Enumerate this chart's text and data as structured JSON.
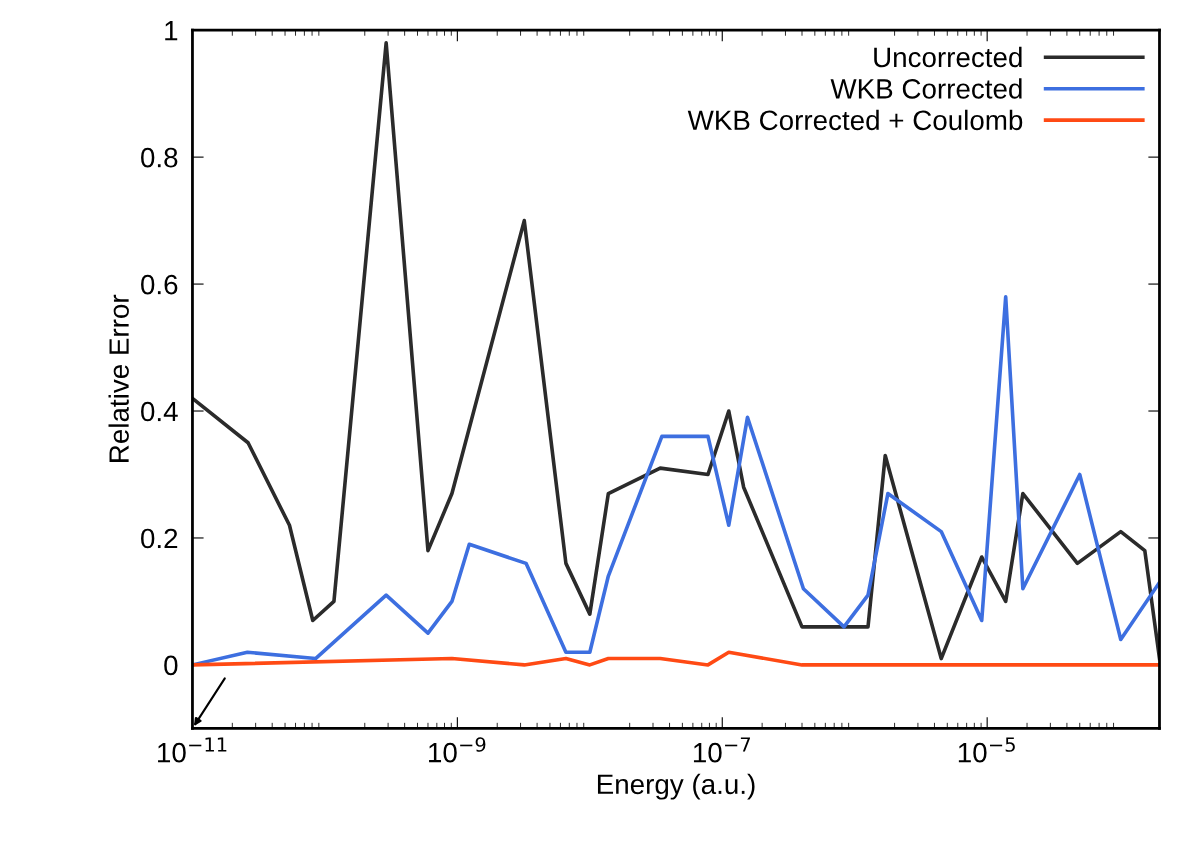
{
  "chart_data": {
    "type": "line",
    "xlabel": "Energy (a.u.)",
    "ylabel": "Relative Error",
    "log": "x",
    "xlim": [
      1e-11,
      0.0002
    ],
    "ylim": [
      -0.1,
      1
    ],
    "xticks": [
      {
        "value": 1e-11,
        "label": "10$^{−11}$"
      },
      {
        "value": 1e-09,
        "label": "10$^{−9}$"
      },
      {
        "value": 1e-07,
        "label": "10$^{−7}$"
      },
      {
        "value": 1e-05,
        "label": "10$^{−5}$"
      }
    ],
    "yticks": [
      0,
      0.2,
      0.4,
      0.6,
      0.8,
      1
    ],
    "grid": false,
    "legend": "top right",
    "line_style": "solid",
    "marker": "none",
    "series": [
      {
        "name": "Uncorrected",
        "color": "#2b2b2b",
        "x": [
          1e-11,
          2.63e-11,
          5.4e-11,
          8.1e-11,
          1.17e-10,
          2.9e-10,
          6e-10,
          9.1e-10,
          3.2e-09,
          6.6e-09,
          1e-08,
          1.38e-08,
          3.4e-08,
          7.8e-08,
          1.12e-07,
          1.45e-07,
          4e-07,
          1.26e-06,
          1.7e-06,
          4.5e-06,
          9.1e-06,
          1.38e-05,
          1.86e-05,
          4.8e-05,
          0.000102,
          0.000155,
          0.0002
        ],
        "values": [
          0.42,
          0.35,
          0.22,
          0.07,
          0.1,
          0.98,
          0.18,
          0.27,
          0.7,
          0.16,
          0.08,
          0.27,
          0.31,
          0.3,
          0.4,
          0.28,
          0.06,
          0.06,
          0.33,
          0.01,
          0.17,
          0.1,
          0.27,
          0.16,
          0.21,
          0.18,
          0.01
        ]
      },
      {
        "name": "WKB Corrected",
        "color": "#3d6fe0",
        "x": [
          1e-11,
          2.6e-11,
          8.5e-11,
          2.9e-10,
          6e-10,
          9.1e-10,
          1.23e-09,
          3.3e-09,
          6.6e-09,
          1e-08,
          1.38e-08,
          3.5e-08,
          7.8e-08,
          1.12e-07,
          1.55e-07,
          4.1e-07,
          8.3e-07,
          1.26e-06,
          1.78e-06,
          4.5e-06,
          9.1e-06,
          1.38e-05,
          1.86e-05,
          5e-05,
          0.000102,
          0.0002
        ],
        "values": [
          0.0,
          0.02,
          0.01,
          0.11,
          0.05,
          0.1,
          0.19,
          0.16,
          0.02,
          0.02,
          0.14,
          0.36,
          0.36,
          0.22,
          0.39,
          0.12,
          0.06,
          0.11,
          0.27,
          0.21,
          0.07,
          0.58,
          0.12,
          0.3,
          0.04,
          0.13
        ]
      },
      {
        "name": "WKB Corrected + Coulomb",
        "color": "#ff4a14",
        "x": [
          1e-11,
          9.1e-10,
          3.2e-09,
          6.6e-09,
          1e-08,
          1.38e-08,
          3.4e-08,
          7.8e-08,
          1.12e-07,
          4e-07,
          1e-05,
          0.0002
        ],
        "values": [
          0.0,
          0.01,
          0.0,
          0.01,
          0.0,
          0.01,
          0.01,
          0.0,
          0.02,
          0.0,
          0.0,
          0.0
        ]
      }
    ]
  }
}
